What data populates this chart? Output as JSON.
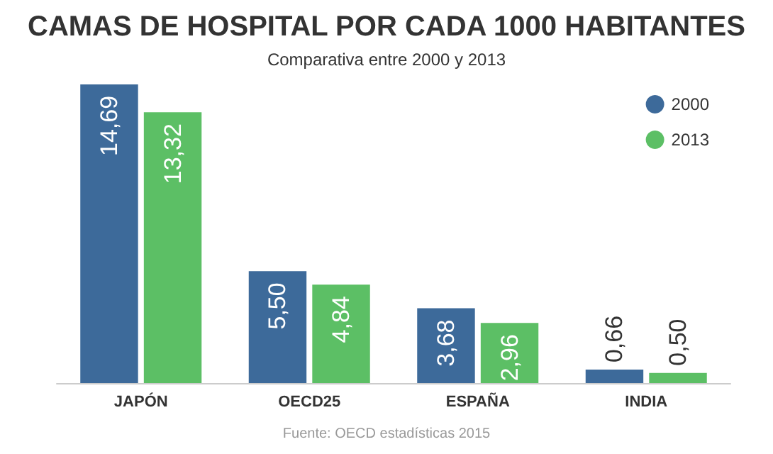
{
  "chart_data": {
    "type": "bar",
    "title": "CAMAS DE HOSPITAL POR CADA 1000 HABITANTES",
    "subtitle": "Comparativa entre 2000 y 2013",
    "categories": [
      "JAPÓN",
      "OECD25",
      "ESPAÑA",
      "INDIA"
    ],
    "series": [
      {
        "name": "2000",
        "color": "#3d6a9a",
        "values": [
          14.69,
          5.5,
          3.68,
          0.66
        ],
        "value_labels": [
          "14,69",
          "5,50",
          "3,68",
          "0,66"
        ]
      },
      {
        "name": "2013",
        "color": "#5cbf65",
        "values": [
          13.32,
          4.84,
          2.96,
          0.5
        ],
        "value_labels": [
          "13,32",
          "4,84",
          "2,96",
          "0,50"
        ]
      }
    ],
    "legend": "top right",
    "grid": false,
    "annotations": [
      "Fuente: OECD estadísticas 2015"
    ]
  }
}
